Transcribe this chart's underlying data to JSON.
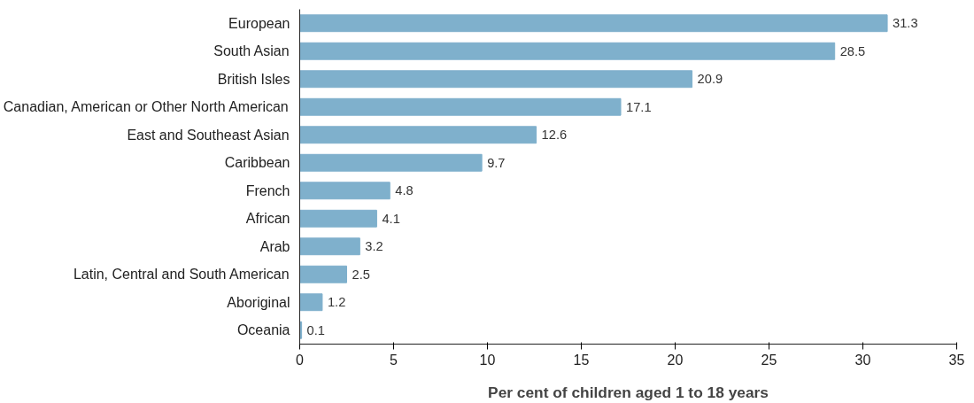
{
  "chart_data": {
    "type": "bar",
    "orientation": "horizontal",
    "xlabel": "Per cent of children aged 1 to 18 years",
    "categories": [
      "European",
      "South Asian",
      "British Isles",
      "Canadian, American or Other North American",
      "East and Southeast Asian",
      "Caribbean",
      "French",
      "African",
      "Arab",
      "Latin, Central and South American",
      "Aboriginal",
      "Oceania"
    ],
    "values": [
      31.3,
      28.5,
      20.9,
      17.1,
      12.6,
      9.7,
      4.8,
      4.1,
      3.2,
      2.5,
      1.2,
      0.1
    ],
    "color": "#7fb0cc",
    "xlim": [
      0,
      35
    ],
    "xticks": [
      0,
      5,
      10,
      15,
      20,
      25,
      30,
      35
    ],
    "data_labels": true,
    "grid": false
  }
}
